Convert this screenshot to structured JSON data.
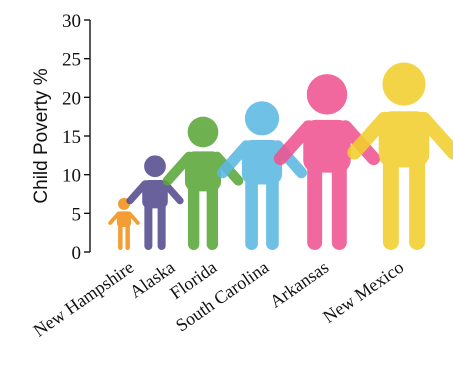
{
  "chart_data": {
    "type": "bar",
    "ylabel": "Child Poverty %",
    "ylim": [
      0,
      30
    ],
    "yticks": [
      0,
      5,
      10,
      15,
      20,
      25,
      30
    ],
    "categories": [
      "New Hampshire",
      "Alaska",
      "Florida",
      "South Carolina",
      "Arkansas",
      "New Mexico"
    ],
    "values": [
      7,
      12.5,
      17.5,
      19.5,
      23,
      24.5
    ],
    "colors": [
      "#F39019",
      "#544C8E",
      "#5AA73A",
      "#5CB8E2",
      "#EE5490",
      "#F2CF2D"
    ],
    "icon": "person-figure",
    "grid": false
  }
}
